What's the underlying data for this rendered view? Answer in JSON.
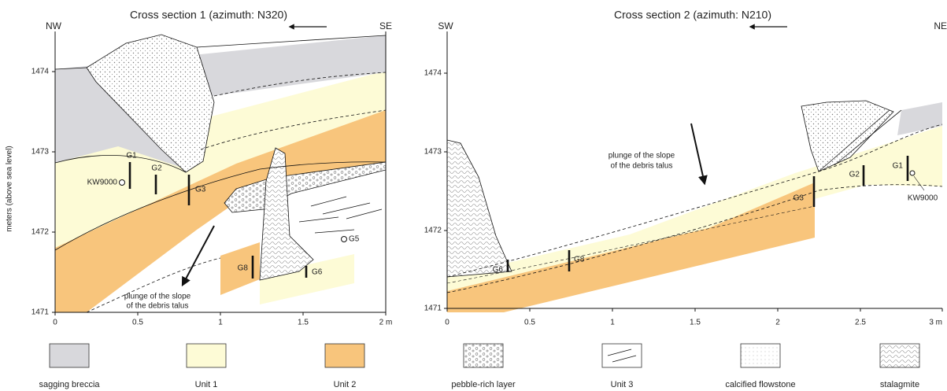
{
  "panels": [
    {
      "title": "Cross section 1 (azimuth: N320)",
      "left_direction": "NW",
      "right_direction": "SE",
      "y_axis_label": "meters (above sea level)",
      "yticks": [
        "1474",
        "1473",
        "1472",
        "1471"
      ],
      "xticks": [
        "0",
        "0.5",
        "1",
        "1.5",
        "2 m"
      ],
      "samples": [
        "G1",
        "G2",
        "G3",
        "G5",
        "G6",
        "G8"
      ],
      "reference_sample": "KW9000",
      "annotation": [
        "plunge of the slope",
        "of the debris talus"
      ]
    },
    {
      "title": "Cross section 2 (azimuth: N210)",
      "left_direction": "SW",
      "right_direction": "NE",
      "yticks": [
        "1474",
        "1473",
        "1472",
        "1471"
      ],
      "xticks": [
        "0",
        "0.5",
        "1",
        "1.5",
        "2",
        "2.5",
        "3 m"
      ],
      "samples": [
        "G1",
        "G2",
        "G3",
        "G6",
        "G8"
      ],
      "reference_sample": "KW9000",
      "annotation": [
        "plunge of the slope",
        "of the debris talus"
      ]
    }
  ],
  "legend": [
    "sagging breccia",
    "Unit 1",
    "Unit 2",
    "pebble-rich layer",
    "Unit 3",
    "calcified flowstone",
    "stalagmite"
  ]
}
